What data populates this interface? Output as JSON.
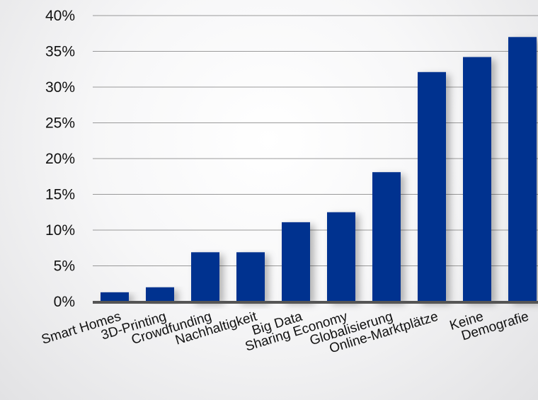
{
  "chart_data": {
    "type": "bar",
    "title": "",
    "xlabel": "",
    "ylabel": "",
    "categories": [
      "Smart Homes",
      "3D-Printing",
      "Crowdfunding",
      "Nachhaltigkeit",
      "Big Data",
      "Sharing Economy",
      "Globalisierung",
      "Online-Marktplätze",
      "Keine",
      "Demografie"
    ],
    "values": [
      1.3,
      2.0,
      6.9,
      6.9,
      11.1,
      12.5,
      18.1,
      32.1,
      34.2,
      37.0
    ],
    "ylim": [
      0,
      40
    ],
    "yticks": [
      0,
      5,
      10,
      15,
      20,
      25,
      30,
      35,
      40
    ],
    "ytick_labels": [
      "0%",
      "5%",
      "10%",
      "15%",
      "20%",
      "25%",
      "30%",
      "35%",
      "40%"
    ],
    "grid": true,
    "legend": "none",
    "colors": {
      "bar": "#00308f",
      "axis": "#555555",
      "grid": "#7a7a7a"
    }
  }
}
